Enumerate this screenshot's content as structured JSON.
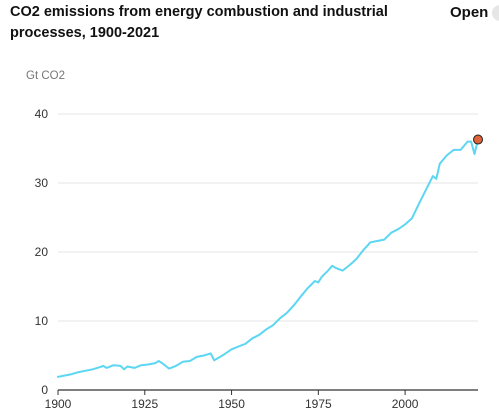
{
  "header": {
    "title": "CO2 emissions from energy combustion and industrial processes, 1900-2021",
    "open_label": "Open"
  },
  "chart_data": {
    "type": "line",
    "title": "CO2 emissions from energy combustion and industrial processes, 1900-2021",
    "ylabel": "Gt CO2",
    "xlabel": "",
    "xlim": [
      1900,
      2021
    ],
    "ylim": [
      0,
      40
    ],
    "x_ticks": [
      1900,
      1925,
      1950,
      1975,
      2000
    ],
    "y_ticks": [
      0,
      10,
      20,
      30,
      40
    ],
    "grid": true,
    "legend": "none",
    "line_color": "#5cd6f2",
    "marker_color": "#e0643a",
    "series": [
      {
        "name": "",
        "x": [
          1900,
          1902,
          1904,
          1906,
          1908,
          1910,
          1912,
          1913,
          1914,
          1916,
          1918,
          1919,
          1920,
          1922,
          1924,
          1926,
          1928,
          1929,
          1930,
          1932,
          1934,
          1936,
          1938,
          1940,
          1942,
          1944,
          1945,
          1946,
          1948,
          1950,
          1952,
          1954,
          1956,
          1958,
          1960,
          1962,
          1964,
          1966,
          1968,
          1970,
          1972,
          1974,
          1975,
          1976,
          1978,
          1979,
          1980,
          1982,
          1984,
          1986,
          1988,
          1990,
          1992,
          1994,
          1996,
          1998,
          2000,
          2002,
          2004,
          2006,
          2008,
          2009,
          2010,
          2012,
          2014,
          2016,
          2018,
          2019,
          2020,
          2021
        ],
        "values": [
          1.9,
          2.1,
          2.3,
          2.6,
          2.8,
          3.0,
          3.3,
          3.5,
          3.2,
          3.6,
          3.5,
          3.0,
          3.4,
          3.2,
          3.6,
          3.7,
          3.9,
          4.2,
          3.9,
          3.1,
          3.5,
          4.1,
          4.2,
          4.8,
          5.0,
          5.3,
          4.3,
          4.6,
          5.2,
          5.9,
          6.3,
          6.7,
          7.5,
          8.0,
          8.8,
          9.4,
          10.4,
          11.2,
          12.3,
          13.6,
          14.8,
          15.8,
          15.6,
          16.4,
          17.4,
          18.0,
          17.7,
          17.3,
          18.1,
          19.0,
          20.3,
          21.4,
          21.6,
          21.8,
          22.8,
          23.3,
          24.0,
          24.9,
          27.0,
          29.0,
          31.0,
          30.6,
          32.8,
          34.0,
          34.8,
          34.8,
          36.0,
          36.0,
          34.2,
          36.3
        ]
      }
    ],
    "highlight_point": {
      "x": 2021,
      "y": 36.3
    }
  }
}
